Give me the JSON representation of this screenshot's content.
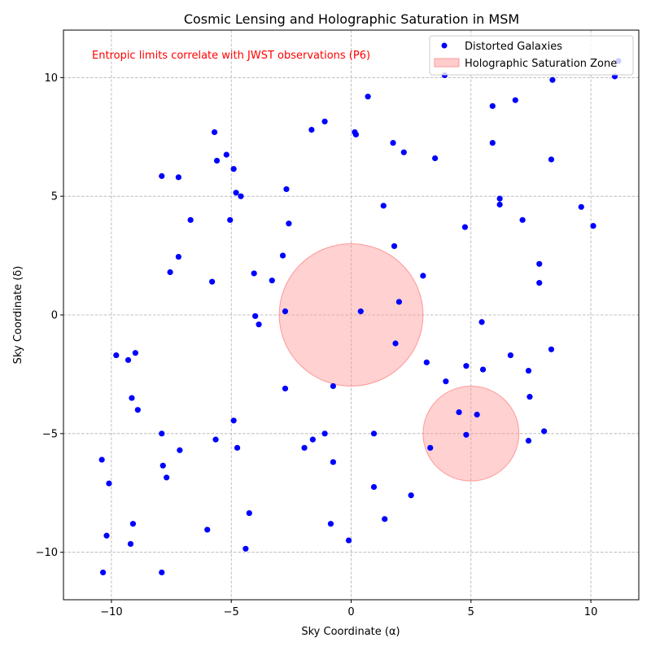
{
  "chart_data": {
    "type": "scatter",
    "title": "Cosmic Lensing and Holographic Saturation in MSM",
    "xlabel": "Sky Coordinate (α)",
    "ylabel": "Sky Coordinate (δ)",
    "xlim": [
      -12,
      12
    ],
    "ylim": [
      -12,
      12
    ],
    "xticks": [
      -10,
      -5,
      0,
      5,
      10
    ],
    "yticks": [
      -10,
      -5,
      0,
      5,
      10
    ],
    "xtick_labels": [
      "−10",
      "−5",
      "0",
      "5",
      "10"
    ],
    "ytick_labels": [
      "−10",
      "−5",
      "0",
      "5",
      "10"
    ],
    "grid": true,
    "legend_position": "top-right",
    "annotation": {
      "text": "Entropic limits correlate with JWST observations (P6)",
      "color": "#ff0000",
      "x": -11,
      "y": 10.9
    },
    "colors": {
      "points": "#0000ff",
      "zone_fill": "#ff9999",
      "zone_edge": "#ff6666"
    },
    "zones": [
      {
        "cx": 0,
        "cy": 0,
        "r": 3
      },
      {
        "cx": 5,
        "cy": -5,
        "r": 2
      }
    ],
    "series": [
      {
        "name": "Distorted Galaxies",
        "points": [
          [
            -10.4,
            -6.1
          ],
          [
            -10.2,
            -9.3
          ],
          [
            -10.1,
            -7.1
          ],
          [
            -10.35,
            -10.85
          ],
          [
            -9.8,
            -1.7
          ],
          [
            -9.3,
            -1.9
          ],
          [
            -9.15,
            -3.5
          ],
          [
            -9.0,
            -1.6
          ],
          [
            -8.9,
            -4.0
          ],
          [
            -9.2,
            -9.65
          ],
          [
            -9.1,
            -8.8
          ],
          [
            -7.9,
            5.85
          ],
          [
            -7.9,
            -5.0
          ],
          [
            -7.85,
            -6.35
          ],
          [
            -7.7,
            -6.85
          ],
          [
            -7.9,
            -10.85
          ],
          [
            -7.55,
            1.8
          ],
          [
            -7.2,
            2.45
          ],
          [
            -7.2,
            5.8
          ],
          [
            -7.15,
            -5.7
          ],
          [
            -6.7,
            4.0
          ],
          [
            -5.8,
            1.4
          ],
          [
            -5.7,
            7.7
          ],
          [
            -5.6,
            6.5
          ],
          [
            -5.65,
            -5.25
          ],
          [
            -5.2,
            6.75
          ],
          [
            -5.05,
            4.0
          ],
          [
            -4.9,
            6.15
          ],
          [
            -4.9,
            -4.45
          ],
          [
            -4.8,
            5.15
          ],
          [
            -4.75,
            -5.6
          ],
          [
            -4.6,
            5.0
          ],
          [
            -4.05,
            1.75
          ],
          [
            -4.0,
            -0.05
          ],
          [
            -3.85,
            -0.4
          ],
          [
            -4.25,
            -8.35
          ],
          [
            -4.4,
            -9.85
          ],
          [
            -6.0,
            -9.05
          ],
          [
            -3.3,
            1.45
          ],
          [
            -2.85,
            2.5
          ],
          [
            -2.7,
            5.3
          ],
          [
            -2.6,
            3.85
          ],
          [
            -2.75,
            0.15
          ],
          [
            -2.75,
            -3.1
          ],
          [
            -1.95,
            -5.6
          ],
          [
            -1.65,
            7.8
          ],
          [
            -1.6,
            -5.25
          ],
          [
            -1.1,
            8.15
          ],
          [
            -1.1,
            -5.0
          ],
          [
            -0.85,
            -8.8
          ],
          [
            -0.75,
            -3.0
          ],
          [
            -0.75,
            -6.2
          ],
          [
            -0.1,
            -9.5
          ],
          [
            0.15,
            7.7
          ],
          [
            0.2,
            7.6
          ],
          [
            0.4,
            0.15
          ],
          [
            0.7,
            9.2
          ],
          [
            0.95,
            -5.0
          ],
          [
            0.95,
            -7.25
          ],
          [
            1.35,
            4.6
          ],
          [
            1.4,
            -8.6
          ],
          [
            1.75,
            7.25
          ],
          [
            1.8,
            2.9
          ],
          [
            1.85,
            -1.2
          ],
          [
            2.0,
            0.55
          ],
          [
            2.2,
            6.85
          ],
          [
            2.5,
            -7.6
          ],
          [
            3.0,
            1.65
          ],
          [
            3.15,
            -2.0
          ],
          [
            3.3,
            -5.6
          ],
          [
            3.5,
            6.6
          ],
          [
            3.9,
            10.1
          ],
          [
            3.95,
            -2.8
          ],
          [
            4.5,
            -4.1
          ],
          [
            4.75,
            3.7
          ],
          [
            4.8,
            -2.15
          ],
          [
            4.8,
            -5.05
          ],
          [
            5.25,
            -4.2
          ],
          [
            5.45,
            -0.3
          ],
          [
            5.5,
            -2.3
          ],
          [
            5.9,
            8.8
          ],
          [
            5.9,
            7.25
          ],
          [
            6.2,
            4.9
          ],
          [
            6.2,
            4.65
          ],
          [
            6.65,
            -1.7
          ],
          [
            6.85,
            9.05
          ],
          [
            7.15,
            4.0
          ],
          [
            7.4,
            -2.35
          ],
          [
            7.45,
            -3.45
          ],
          [
            7.4,
            -5.3
          ],
          [
            7.85,
            2.15
          ],
          [
            7.85,
            1.35
          ],
          [
            8.05,
            -4.9
          ],
          [
            8.35,
            6.55
          ],
          [
            8.35,
            -1.45
          ],
          [
            8.4,
            9.9
          ],
          [
            9.6,
            4.55
          ],
          [
            10.1,
            3.75
          ],
          [
            11.0,
            10.05
          ],
          [
            11.15,
            10.7
          ]
        ]
      },
      {
        "name": "Holographic Saturation Zone"
      }
    ]
  }
}
